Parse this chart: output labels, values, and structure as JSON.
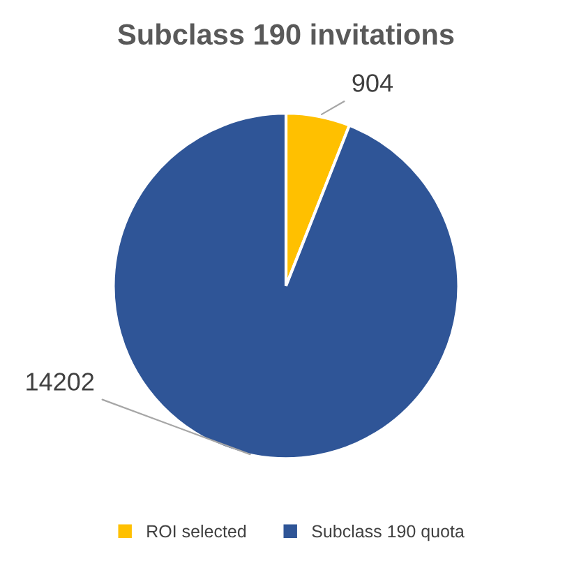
{
  "chart_data": {
    "type": "pie",
    "title": "Subclass 190 invitations",
    "categories": [
      "ROI selected",
      "Subclass 190 quota"
    ],
    "values": [
      904,
      14202
    ],
    "colors": [
      "#ffc000",
      "#2f5597"
    ],
    "data_labels": true,
    "legend": "bottom"
  }
}
